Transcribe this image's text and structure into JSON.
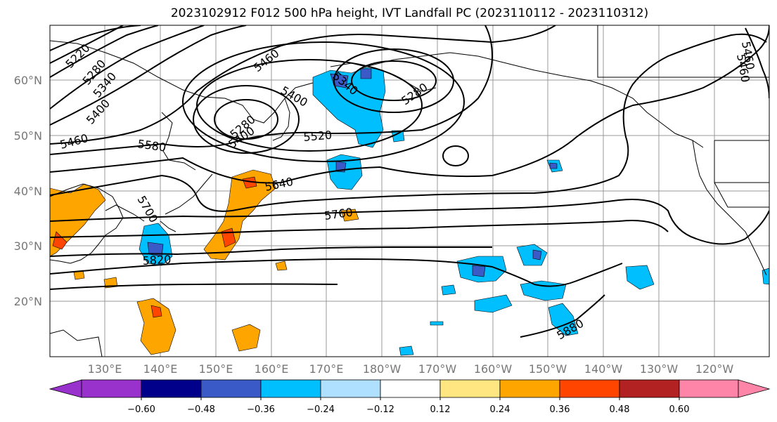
{
  "title": "2023102912 F012 500 hPa height, IVT Landfall PC (2023110112 - 2023110312)",
  "map": {
    "lat_labels": [
      "60°N",
      "50°N",
      "40°N",
      "30°N",
      "20°N"
    ],
    "lon_labels": [
      "130°E",
      "140°E",
      "150°E",
      "160°E",
      "170°E",
      "180°W",
      "170°W",
      "160°W",
      "150°W",
      "140°W",
      "130°W",
      "120°W"
    ],
    "contour_labels": [
      "5220",
      "5280",
      "5340",
      "5400",
      "5460",
      "5460",
      "5400",
      "5340",
      "5280",
      "5280",
      "5400",
      "5580",
      "5520",
      "5640",
      "5700",
      "5760",
      "5820",
      "5880",
      "5460",
      "5460"
    ]
  },
  "colorbar": {
    "ticks": [
      "−0.60",
      "−0.48",
      "−0.36",
      "−0.24",
      "−0.12",
      "0.12",
      "0.24",
      "0.36",
      "0.48",
      "0.60"
    ],
    "colors": [
      "#9932cc",
      "#00008b",
      "#3a5bc7",
      "#00bfff",
      "#b0e0ff",
      "#ffffff",
      "#ffe680",
      "#ffa500",
      "#ff4500",
      "#b22222",
      "#ff85a8"
    ]
  }
}
